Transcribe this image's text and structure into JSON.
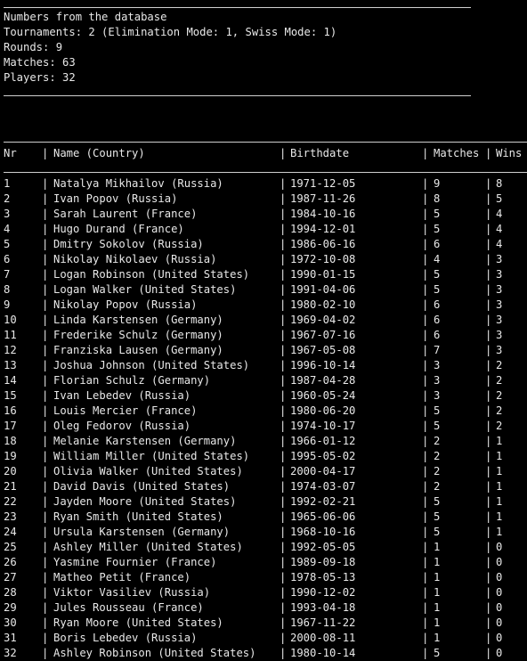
{
  "summary": {
    "title": "Numbers from the database",
    "tournaments": "Tournaments: 2 (Elimination Mode: 1, Swiss Mode: 1)",
    "rounds": "Rounds: 9",
    "matches": "Matches: 63",
    "players": "Players: 32"
  },
  "table": {
    "separator": "|",
    "headers": {
      "nr": "Nr",
      "name": "Name (Country)",
      "birthdate": "Birthdate",
      "matches": "Matches",
      "wins": "Wins"
    },
    "rows": [
      {
        "nr": "1",
        "name": "Natalya Mikhailov (Russia)",
        "birthdate": "1971-12-05",
        "matches": "9",
        "wins": "8"
      },
      {
        "nr": "2",
        "name": "Ivan Popov (Russia)",
        "birthdate": "1987-11-26",
        "matches": "8",
        "wins": "5"
      },
      {
        "nr": "3",
        "name": "Sarah Laurent (France)",
        "birthdate": "1984-10-16",
        "matches": "5",
        "wins": "4"
      },
      {
        "nr": "4",
        "name": "Hugo Durand (France)",
        "birthdate": "1994-12-01",
        "matches": "5",
        "wins": "4"
      },
      {
        "nr": "5",
        "name": "Dmitry Sokolov (Russia)",
        "birthdate": "1986-06-16",
        "matches": "6",
        "wins": "4"
      },
      {
        "nr": "6",
        "name": "Nikolay Nikolaev (Russia)",
        "birthdate": "1972-10-08",
        "matches": "4",
        "wins": "3"
      },
      {
        "nr": "7",
        "name": "Logan Robinson (United States)",
        "birthdate": "1990-01-15",
        "matches": "5",
        "wins": "3"
      },
      {
        "nr": "8",
        "name": "Logan Walker (United States)",
        "birthdate": "1991-04-06",
        "matches": "5",
        "wins": "3"
      },
      {
        "nr": "9",
        "name": "Nikolay Popov (Russia)",
        "birthdate": "1980-02-10",
        "matches": "6",
        "wins": "3"
      },
      {
        "nr": "10",
        "name": "Linda Karstensen (Germany)",
        "birthdate": "1969-04-02",
        "matches": "6",
        "wins": "3"
      },
      {
        "nr": "11",
        "name": "Frederike Schulz (Germany)",
        "birthdate": "1967-07-16",
        "matches": "6",
        "wins": "3"
      },
      {
        "nr": "12",
        "name": "Franziska Lausen (Germany)",
        "birthdate": "1967-05-08",
        "matches": "7",
        "wins": "3"
      },
      {
        "nr": "13",
        "name": "Joshua Johnson (United States)",
        "birthdate": "1996-10-14",
        "matches": "3",
        "wins": "2"
      },
      {
        "nr": "14",
        "name": "Florian Schulz (Germany)",
        "birthdate": "1987-04-28",
        "matches": "3",
        "wins": "2"
      },
      {
        "nr": "15",
        "name": "Ivan Lebedev (Russia)",
        "birthdate": "1960-05-24",
        "matches": "3",
        "wins": "2"
      },
      {
        "nr": "16",
        "name": "Louis Mercier (France)",
        "birthdate": "1980-06-20",
        "matches": "5",
        "wins": "2"
      },
      {
        "nr": "17",
        "name": "Oleg Fedorov (Russia)",
        "birthdate": "1974-10-17",
        "matches": "5",
        "wins": "2"
      },
      {
        "nr": "18",
        "name": "Melanie Karstensen (Germany)",
        "birthdate": "1966-01-12",
        "matches": "2",
        "wins": "1"
      },
      {
        "nr": "19",
        "name": "William Miller (United States)",
        "birthdate": "1995-05-02",
        "matches": "2",
        "wins": "1"
      },
      {
        "nr": "20",
        "name": "Olivia Walker (United States)",
        "birthdate": "2000-04-17",
        "matches": "2",
        "wins": "1"
      },
      {
        "nr": "21",
        "name": "David Davis (United States)",
        "birthdate": "1974-03-07",
        "matches": "2",
        "wins": "1"
      },
      {
        "nr": "22",
        "name": "Jayden Moore (United States)",
        "birthdate": "1992-02-21",
        "matches": "5",
        "wins": "1"
      },
      {
        "nr": "23",
        "name": "Ryan Smith (United States)",
        "birthdate": "1965-06-06",
        "matches": "5",
        "wins": "1"
      },
      {
        "nr": "24",
        "name": "Ursula Karstensen (Germany)",
        "birthdate": "1968-10-16",
        "matches": "5",
        "wins": "1"
      },
      {
        "nr": "25",
        "name": "Ashley Miller (United States)",
        "birthdate": "1992-05-05",
        "matches": "1",
        "wins": "0"
      },
      {
        "nr": "26",
        "name": "Yasmine Fournier (France)",
        "birthdate": "1989-09-18",
        "matches": "1",
        "wins": "0"
      },
      {
        "nr": "27",
        "name": "Matheo Petit (France)",
        "birthdate": "1978-05-13",
        "matches": "1",
        "wins": "0"
      },
      {
        "nr": "28",
        "name": "Viktor Vasiliev (Russia)",
        "birthdate": "1990-12-02",
        "matches": "1",
        "wins": "0"
      },
      {
        "nr": "29",
        "name": "Jules Rousseau (France)",
        "birthdate": "1993-04-18",
        "matches": "1",
        "wins": "0"
      },
      {
        "nr": "30",
        "name": "Ryan Moore (United States)",
        "birthdate": "1967-11-22",
        "matches": "1",
        "wins": "0"
      },
      {
        "nr": "31",
        "name": "Boris Lebedev (Russia)",
        "birthdate": "2000-08-11",
        "matches": "1",
        "wins": "0"
      },
      {
        "nr": "32",
        "name": "Ashley Robinson (United States)",
        "birthdate": "1980-10-14",
        "matches": "5",
        "wins": "0"
      }
    ]
  }
}
